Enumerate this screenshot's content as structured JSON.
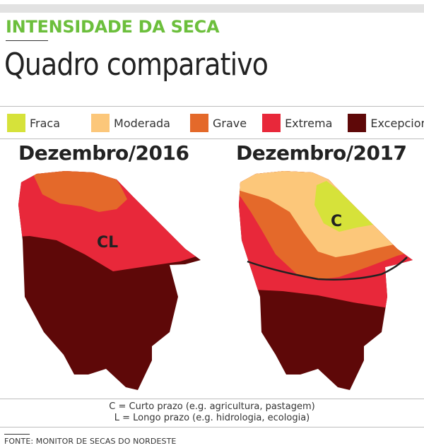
{
  "header": {
    "kicker": "INTENSIDADE DA SECA",
    "title": "Quadro comparativo"
  },
  "legend": [
    {
      "label": "Fraca",
      "color": "#d6e23a"
    },
    {
      "label": "Moderada",
      "color": "#fcc77a"
    },
    {
      "label": "Grave",
      "color": "#e4692a"
    },
    {
      "label": "Extrema",
      "color": "#e8283a"
    },
    {
      "label": "Excepcional",
      "color": "#5e0808"
    }
  ],
  "maps": [
    {
      "title": "Dezembro/2016",
      "zone_label": "CL"
    },
    {
      "title": "Dezembro/2017",
      "zone_label": "C"
    }
  ],
  "notes": [
    "C = Curto prazo (e.g. agricultura, pastagem)",
    "L = Longo prazo (e.g. hidrologia, ecologia)"
  ],
  "source": "FONTE: MONITOR DE SECAS DO NORDESTE"
}
